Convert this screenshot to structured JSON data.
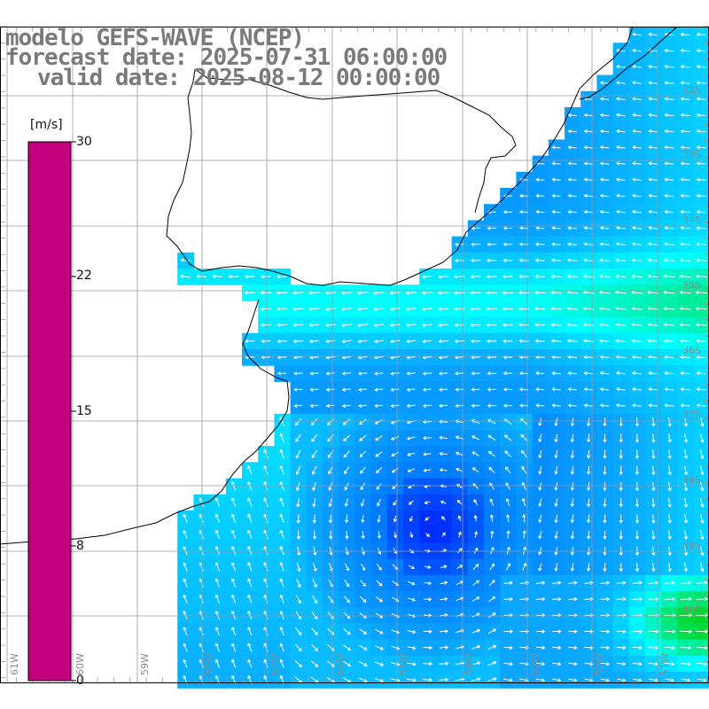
{
  "title": {
    "line1": "modelo GEFS-WAVE (NCEP)",
    "line2": "forecast date: 2025-07-31 06:00:00",
    "line3": "valid date: 2025-08-12 00:00:00"
  },
  "colorbar": {
    "unit": "[m/s]",
    "min": 0,
    "max": 30,
    "ticks": [
      "30",
      "22",
      "15",
      "8",
      "0"
    ],
    "colors": [
      "#c3007d",
      "#ff0000",
      "#ff8000",
      "#ffff00",
      "#00d000",
      "#00ffff",
      "#0090ff",
      "#0000ff"
    ]
  },
  "grid": {
    "lat_labels": [
      "32S",
      "33S",
      "34S",
      "35S",
      "36S",
      "37S",
      "38S",
      "39S",
      "40S"
    ],
    "lon_labels": [
      "61W",
      "60W",
      "59W",
      "58W",
      "57W",
      "56W",
      "55W",
      "54W",
      "53W",
      "52W",
      "51W"
    ]
  },
  "chart_data": {
    "type": "wind-vector-map",
    "variable": "wind speed",
    "units": "m/s",
    "lon_range": [
      -61.5,
      -50.5
    ],
    "lat_range": [
      -41.5,
      -31.5
    ],
    "speed_range": [
      0,
      30
    ],
    "max_speed_region": "southeast corner, about 11 m/s"
  }
}
